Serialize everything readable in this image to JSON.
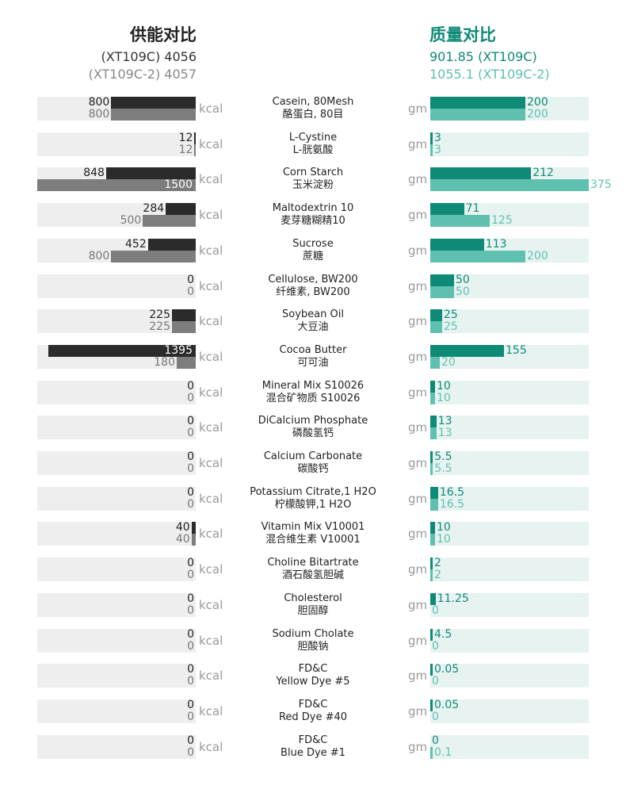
{
  "header": {
    "energy_title": "供能对比",
    "energy_sub1": "(XT109C) 4056",
    "energy_sub2": "(XT109C-2) 4057",
    "mass_title": "质量对比",
    "mass_sub1": "901.85 (XT109C)",
    "mass_sub2": "1055.1 (XT109C-2)"
  },
  "units": {
    "energy": "kcal",
    "mass": "gm"
  },
  "colors": {
    "energy_c": "#2b2b2b",
    "energy_c2": "#7d7d7d",
    "mass_c": "#0f8a76",
    "mass_c2": "#5fc0b0",
    "energy_bg": "#eeeeee",
    "mass_bg": "#e7f3f1"
  },
  "chart_data": {
    "type": "bar",
    "series": [
      "XT109C",
      "XT109C-2"
    ],
    "ingredients": [
      {
        "en": "Casein, 80Mesh",
        "cn": "酪蛋白, 80目",
        "kcal": [
          "800",
          "800"
        ],
        "gm": [
          "200",
          "200"
        ]
      },
      {
        "en": "L-Cystine",
        "cn": "L-胱氨酸",
        "kcal": [
          "12",
          "12"
        ],
        "gm": [
          "3",
          "3"
        ]
      },
      {
        "en": "Corn Starch",
        "cn": "玉米淀粉",
        "kcal": [
          "848",
          "1500"
        ],
        "gm": [
          "212",
          "375"
        ]
      },
      {
        "en": "Maltodextrin 10",
        "cn": "麦芽糖糊精10",
        "kcal": [
          "284",
          "500"
        ],
        "gm": [
          "71",
          "125"
        ]
      },
      {
        "en": "Sucrose",
        "cn": "蔗糖",
        "kcal": [
          "452",
          "800"
        ],
        "gm": [
          "113",
          "200"
        ]
      },
      {
        "en": "Cellulose, BW200",
        "cn": "纤维素, BW200",
        "kcal": [
          "0",
          "0"
        ],
        "gm": [
          "50",
          "50"
        ]
      },
      {
        "en": "Soybean Oil",
        "cn": "大豆油",
        "kcal": [
          "225",
          "225"
        ],
        "gm": [
          "25",
          "25"
        ]
      },
      {
        "en": "Cocoa Butter",
        "cn": "可可油",
        "kcal": [
          "1395",
          "180"
        ],
        "gm": [
          "155",
          "20"
        ]
      },
      {
        "en": "Mineral Mix S10026",
        "cn": "混合矿物质 S10026",
        "kcal": [
          "0",
          "0"
        ],
        "gm": [
          "10",
          "10"
        ]
      },
      {
        "en": "DiCalcium Phosphate",
        "cn": "磷酸氢钙",
        "kcal": [
          "0",
          "0"
        ],
        "gm": [
          "13",
          "13"
        ]
      },
      {
        "en": "Calcium Carbonate",
        "cn": "碳酸钙",
        "kcal": [
          "0",
          "0"
        ],
        "gm": [
          "5.5",
          "5.5"
        ]
      },
      {
        "en": "Potassium Citrate,1 H2O",
        "cn": "柠檬酸钾,1 H2O",
        "kcal": [
          "0",
          "0"
        ],
        "gm": [
          "16.5",
          "16.5"
        ]
      },
      {
        "en": "Vitamin Mix V10001",
        "cn": "混合维生素 V10001",
        "kcal": [
          "40",
          "40"
        ],
        "gm": [
          "10",
          "10"
        ]
      },
      {
        "en": "Choline Bitartrate",
        "cn": "酒石酸氢胆碱",
        "kcal": [
          "0",
          "0"
        ],
        "gm": [
          "2",
          "2"
        ]
      },
      {
        "en": "Cholesterol",
        "cn": "胆固醇",
        "kcal": [
          "0",
          "0"
        ],
        "gm": [
          "11.25",
          "0"
        ]
      },
      {
        "en": "Sodium Cholate",
        "cn": "胆酸钠",
        "kcal": [
          "0",
          "0"
        ],
        "gm": [
          "4.5",
          "0"
        ]
      },
      {
        "en": "FD&C",
        "cn": "Yellow Dye #5",
        "kcal": [
          "0",
          "0"
        ],
        "gm": [
          "0.05",
          "0"
        ]
      },
      {
        "en": "FD&C",
        "cn": "Red Dye #40",
        "kcal": [
          "0",
          "0"
        ],
        "gm": [
          "0.05",
          "0"
        ]
      },
      {
        "en": "FD&C",
        "cn": "Blue Dye #1",
        "kcal": [
          "0",
          "0"
        ],
        "gm": [
          "0",
          "0.1"
        ]
      }
    ]
  }
}
